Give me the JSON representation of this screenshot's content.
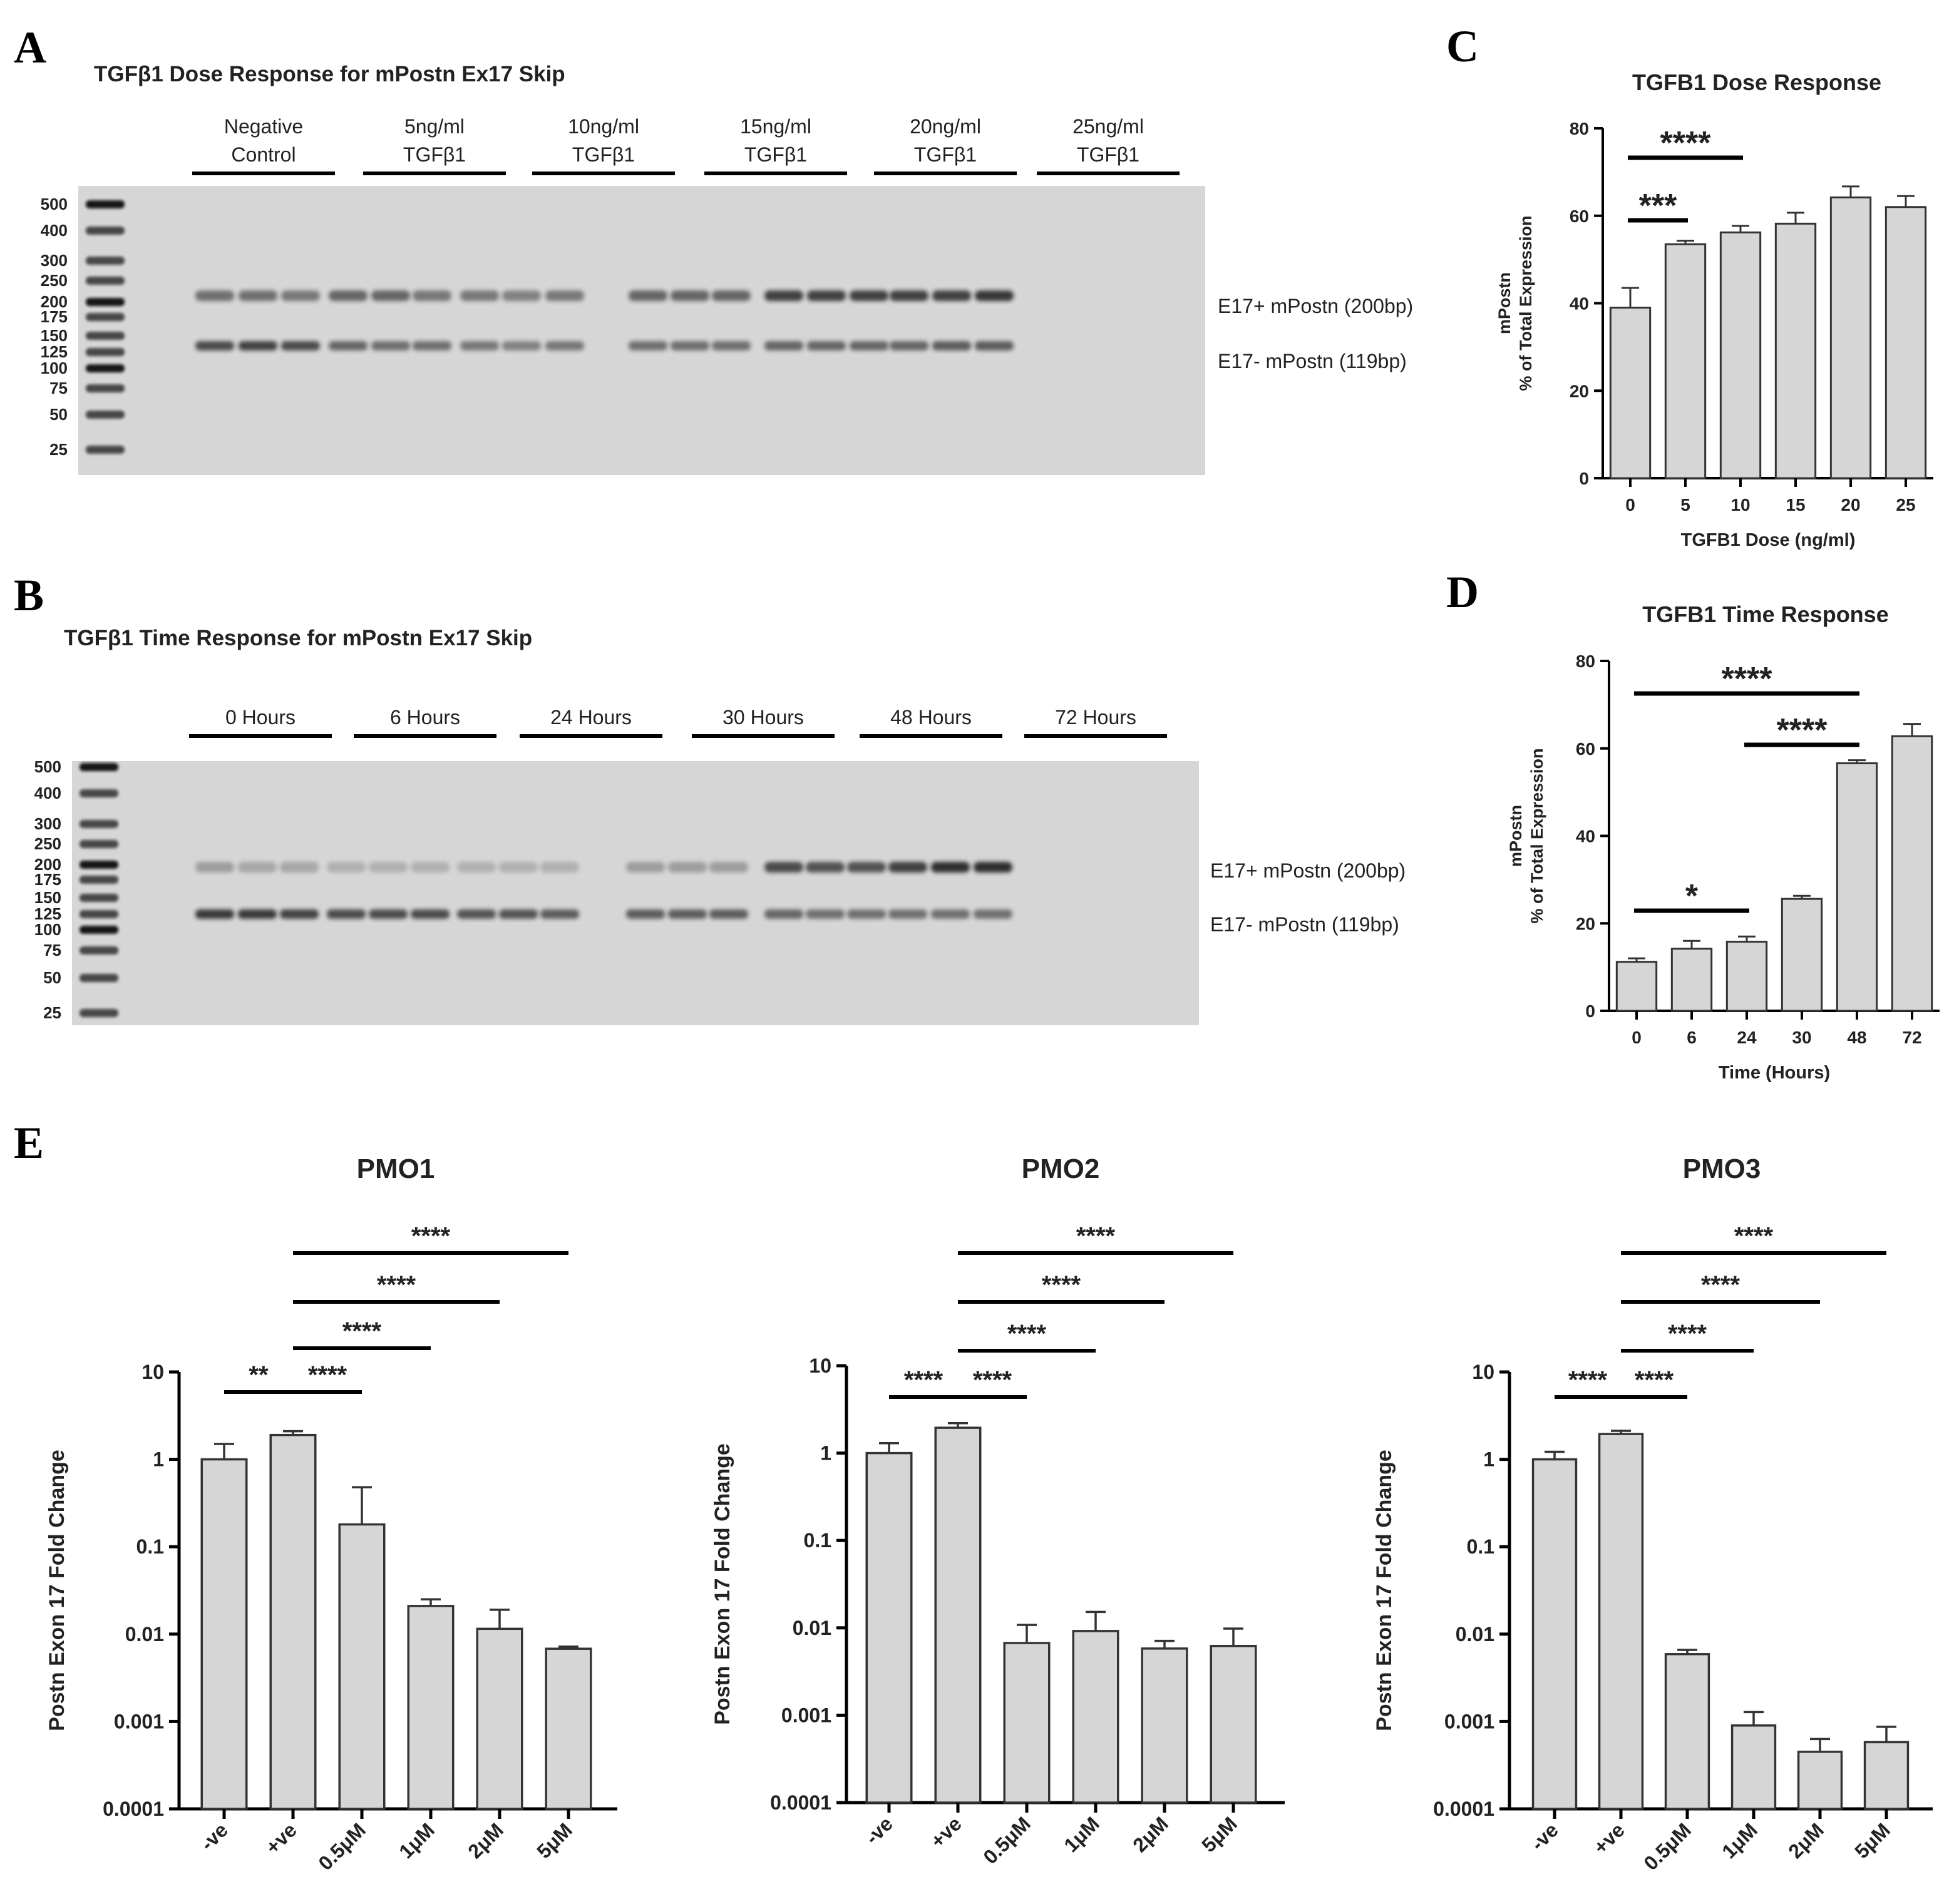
{
  "panel_letters": {
    "a": "A",
    "b": "B",
    "c": "C",
    "d": "D",
    "e": "E"
  },
  "gel_a": {
    "title": "TGFβ1 Dose Response for mPostn Ex17 Skip",
    "groups": [
      {
        "line1": "Negative",
        "line2": "Control"
      },
      {
        "line1": "5ng/ml",
        "line2": "TGFβ1"
      },
      {
        "line1": "10ng/ml",
        "line2": "TGFβ1"
      },
      {
        "line1": "15ng/ml",
        "line2": "TGFβ1"
      },
      {
        "line1": "20ng/ml",
        "line2": "TGFβ1"
      },
      {
        "line1": "25ng/ml",
        "line2": "TGFβ1"
      }
    ],
    "ladder": [
      "500",
      "400",
      "300",
      "250",
      "200",
      "175",
      "150",
      "125",
      "100",
      "75",
      "50",
      "25"
    ],
    "band_upper_label": "E17+ mPostn (200bp)",
    "band_lower_label": "E17- mPostn (119bp)",
    "upper_intensity": [
      0.55,
      0.55,
      0.5,
      0.6,
      0.6,
      0.5,
      0.5,
      0.45,
      0.5,
      0.6,
      0.6,
      0.6,
      0.8,
      0.8,
      0.8,
      0.8,
      0.8,
      0.85
    ],
    "lower_intensity": [
      0.75,
      0.8,
      0.75,
      0.6,
      0.55,
      0.55,
      0.5,
      0.45,
      0.5,
      0.55,
      0.55,
      0.55,
      0.6,
      0.6,
      0.6,
      0.6,
      0.65,
      0.65
    ]
  },
  "gel_b": {
    "title": "TGFβ1 Time Response for mPostn Ex17 Skip",
    "groups": [
      "0 Hours",
      "6 Hours",
      "24 Hours",
      "30 Hours",
      "48 Hours",
      "72 Hours"
    ],
    "ladder": [
      "500",
      "400",
      "300",
      "250",
      "200",
      "175",
      "150",
      "125",
      "100",
      "75",
      "50",
      "25"
    ],
    "band_upper_label": "E17+ mPostn (200bp)",
    "band_lower_label": "E17- mPostn (119bp)",
    "upper_intensity": [
      0.3,
      0.25,
      0.25,
      0.2,
      0.2,
      0.2,
      0.2,
      0.2,
      0.2,
      0.3,
      0.3,
      0.3,
      0.75,
      0.7,
      0.7,
      0.8,
      0.9,
      0.9
    ],
    "lower_intensity": [
      0.85,
      0.85,
      0.8,
      0.75,
      0.75,
      0.75,
      0.7,
      0.7,
      0.65,
      0.65,
      0.65,
      0.65,
      0.6,
      0.55,
      0.55,
      0.55,
      0.55,
      0.55
    ]
  },
  "chart_data": [
    {
      "id": "C",
      "type": "bar",
      "title": "TGFB1 Dose Response",
      "xlabel": "TGFB1 Dose (ng/ml)",
      "ylabel_line1": "mPostn",
      "ylabel_line2": "% of Total Expression",
      "categories": [
        "0",
        "5",
        "10",
        "15",
        "20",
        "25"
      ],
      "values": [
        39,
        53.5,
        56.2,
        58.2,
        64.2,
        62
      ],
      "errors": [
        4.5,
        0.8,
        1.5,
        2.5,
        2.5,
        2.5
      ],
      "ylim": [
        0,
        80
      ],
      "yticks": [
        "0",
        "20",
        "40",
        "60",
        "80"
      ],
      "significance": [
        {
          "from": 0,
          "to": 2,
          "label": "****"
        },
        {
          "from": 0,
          "to": 1,
          "label": "***"
        }
      ]
    },
    {
      "id": "D",
      "type": "bar",
      "title": "TGFB1 Time Response",
      "xlabel": "Time (Hours)",
      "ylabel_line1": "mPostn",
      "ylabel_line2": "% of Total Expression",
      "categories": [
        "0",
        "6",
        "24",
        "30",
        "48",
        "72"
      ],
      "values": [
        11.2,
        14.2,
        15.8,
        25.6,
        56.6,
        62.8
      ],
      "errors": [
        0.8,
        1.8,
        1.2,
        0.7,
        0.7,
        2.8
      ],
      "ylim": [
        0,
        80
      ],
      "yticks": [
        "0",
        "20",
        "40",
        "60",
        "80"
      ],
      "significance": [
        {
          "from": 0,
          "to": 4,
          "label": "****"
        },
        {
          "from": 2,
          "to": 4,
          "label": "****"
        },
        {
          "from": 0,
          "to": 2,
          "label": "*"
        }
      ]
    },
    {
      "id": "E1",
      "type": "bar",
      "scale": "log",
      "title": "PMO1",
      "ylabel": "Postn Exon 17 Fold Change",
      "categories": [
        "-ve",
        "+ve",
        "0.5μM",
        "1μM",
        "2μM",
        "5μM"
      ],
      "values": [
        1.0,
        1.9,
        0.18,
        0.021,
        0.0115,
        0.0068
      ],
      "error_tops": [
        1.5,
        2.1,
        0.48,
        0.025,
        0.019,
        0.0072
      ],
      "ylim": [
        0.0001,
        10
      ],
      "yticks": [
        "0.0001",
        "0.001",
        "0.01",
        "0.1",
        "1",
        "10"
      ],
      "significance": [
        {
          "from": 1,
          "to": 5,
          "label": "****"
        },
        {
          "from": 1,
          "to": 4,
          "label": "****"
        },
        {
          "from": 1,
          "to": 3,
          "label": "****"
        },
        {
          "from": 0,
          "to": 1,
          "label": "**"
        },
        {
          "from": 1,
          "to": 2,
          "label": "****"
        }
      ]
    },
    {
      "id": "E2",
      "type": "bar",
      "scale": "log",
      "title": "PMO2",
      "ylabel": "Postn Exon 17 Fold Change",
      "categories": [
        "-ve",
        "+ve",
        "0.5μM",
        "1μM",
        "2μM",
        "5μM"
      ],
      "values": [
        1.0,
        1.95,
        0.0067,
        0.0092,
        0.0058,
        0.0062
      ],
      "error_tops": [
        1.3,
        2.2,
        0.0108,
        0.0152,
        0.0071,
        0.0098
      ],
      "ylim": [
        0.0001,
        10
      ],
      "yticks": [
        "0.0001",
        "0.001",
        "0.01",
        "0.1",
        "1",
        "10"
      ],
      "significance": [
        {
          "from": 1,
          "to": 5,
          "label": "****"
        },
        {
          "from": 1,
          "to": 4,
          "label": "****"
        },
        {
          "from": 1,
          "to": 3,
          "label": "****"
        },
        {
          "from": 0,
          "to": 1,
          "label": "****"
        },
        {
          "from": 1,
          "to": 2,
          "label": "****"
        }
      ]
    },
    {
      "id": "E3",
      "type": "bar",
      "scale": "log",
      "title": "PMO3",
      "ylabel": "Postn Exon 17 Fold Change",
      "categories": [
        "-ve",
        "+ve",
        "0.5μM",
        "1μM",
        "2μM",
        "5μM"
      ],
      "values": [
        1.0,
        1.95,
        0.0059,
        0.0009,
        0.00045,
        0.00058
      ],
      "error_tops": [
        1.22,
        2.12,
        0.0066,
        0.00128,
        0.00063,
        0.00087
      ],
      "ylim": [
        0.0001,
        10
      ],
      "yticks": [
        "0.0001",
        "0.001",
        "0.01",
        "0.1",
        "1",
        "10"
      ],
      "significance": [
        {
          "from": 1,
          "to": 5,
          "label": "****"
        },
        {
          "from": 1,
          "to": 4,
          "label": "****"
        },
        {
          "from": 1,
          "to": 3,
          "label": "****"
        },
        {
          "from": 0,
          "to": 1,
          "label": "****"
        },
        {
          "from": 1,
          "to": 2,
          "label": "****"
        }
      ]
    }
  ]
}
